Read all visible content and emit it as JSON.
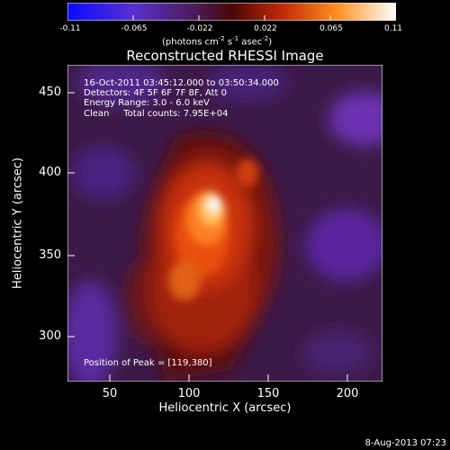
{
  "colorbar": {
    "ticks": [
      "-0.11",
      "-0.065",
      "-0.022",
      "0.022",
      "0.065",
      "0.11"
    ],
    "units_main": "(photons cm",
    "units_exp1": "-2",
    "units_mid": " s",
    "units_exp2": "-1",
    "units_mid2": " asec",
    "units_exp3": "-2",
    "units_end": ")",
    "colors": [
      "#1010ff",
      "#6a28c8",
      "#5a2a5a",
      "#7a1010",
      "#e84010",
      "#ffb030",
      "#ffffff"
    ]
  },
  "title": "Reconstructed RHESSI Image",
  "annotations": {
    "time_range": "16-Oct-2011 03:45:12.000 to 03:50:34.000",
    "detectors": "Detectors: 4F 5F 6F 7F 8F, Att 0",
    "energy": "Energy Range: 3.0 - 6.0 keV",
    "clean": "Clean     Total counts: 7.95E+04",
    "peak": "Position of Peak = [119,380]"
  },
  "axes": {
    "xlabel": "Heliocentric X (arcsec)",
    "ylabel": "Heliocentric Y (arcsec)",
    "xticks": [
      "50",
      "100",
      "150",
      "200"
    ],
    "yticks": [
      "450",
      "400",
      "350",
      "300"
    ],
    "xlim": [
      25,
      217
    ],
    "ylim": [
      273,
      468
    ]
  },
  "peak_position": [
    119,
    380
  ],
  "datestamp": "8-Aug-2013 07:23"
}
